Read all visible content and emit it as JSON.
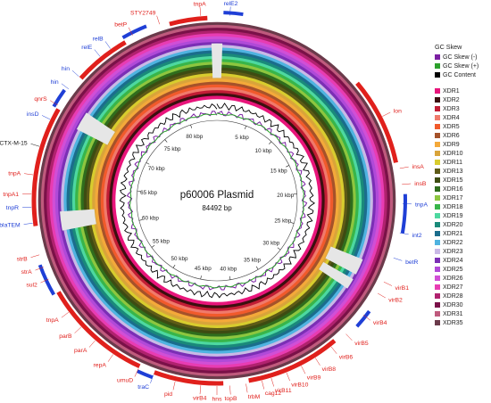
{
  "title": "p60006 Plasmid",
  "length_label": "84492 bp",
  "ticks": [
    "5 kbp",
    "10 kbp",
    "15 kbp",
    "20 kbp",
    "25 kbp",
    "30 kbp",
    "35 kbp",
    "40 kbp",
    "45 kbp",
    "50 kbp",
    "55 kbp",
    "60 kbp",
    "65 kbp",
    "70 kbp",
    "75 kbp",
    "80 kbp"
  ],
  "legend": {
    "gc_title": "GC Skew",
    "gc_items": [
      {
        "label": "GC Skew (-)",
        "color": "#7b1fa2"
      },
      {
        "label": "GC Skew (+)",
        "color": "#2ca02c"
      },
      {
        "label": "GC Content",
        "color": "#000000"
      }
    ],
    "rings": [
      {
        "label": "XDR1",
        "color": "#e8157b"
      },
      {
        "label": "XDR2",
        "color": "#3b0f0f"
      },
      {
        "label": "XDR3",
        "color": "#c21d35"
      },
      {
        "label": "XDR4",
        "color": "#f07a6b"
      },
      {
        "label": "XDR5",
        "color": "#f15a2b"
      },
      {
        "label": "XDR6",
        "color": "#a5522a"
      },
      {
        "label": "XDR9",
        "color": "#f4a93a"
      },
      {
        "label": "XDR10",
        "color": "#d9a43a"
      },
      {
        "label": "XDR11",
        "color": "#d8cc2e"
      },
      {
        "label": "XDR13",
        "color": "#5e5a17"
      },
      {
        "label": "XDR15",
        "color": "#3d4c12"
      },
      {
        "label": "XDR16",
        "color": "#2f6d1d"
      },
      {
        "label": "XDR17",
        "color": "#8dc63f"
      },
      {
        "label": "XDR18",
        "color": "#38b54a"
      },
      {
        "label": "XDR19",
        "color": "#4dd8a0"
      },
      {
        "label": "XDR20",
        "color": "#1a8a7a"
      },
      {
        "label": "XDR21",
        "color": "#1b6d8c"
      },
      {
        "label": "XDR22",
        "color": "#4fb3e0"
      },
      {
        "label": "XDR23",
        "color": "#c9b9e6"
      },
      {
        "label": "XDR24",
        "color": "#7b2fb5"
      },
      {
        "label": "XDR25",
        "color": "#b04ad8"
      },
      {
        "label": "XDR26",
        "color": "#d14fd6"
      },
      {
        "label": "XDR27",
        "color": "#e83cb2"
      },
      {
        "label": "XDR28",
        "color": "#b0226e"
      },
      {
        "label": "XDR30",
        "color": "#7a1148"
      },
      {
        "label": "XDR31",
        "color": "#bf5a7d"
      },
      {
        "label": "XDR35",
        "color": "#6a3a4a"
      }
    ]
  },
  "genes": [
    {
      "label": "relE2",
      "color": "#1f3fd6"
    },
    {
      "label": "tnpA",
      "color": "#e0201c"
    },
    {
      "label": "STY2749",
      "color": "#e0201c"
    },
    {
      "label": "betP",
      "color": "#e0201c"
    },
    {
      "label": "relB",
      "color": "#1f3fd6"
    },
    {
      "label": "relE",
      "color": "#1f3fd6"
    },
    {
      "label": "hin",
      "color": "#1f3fd6"
    },
    {
      "label": "hin",
      "color": "#1f3fd6"
    },
    {
      "label": "qnrS",
      "color": "#e0201c"
    },
    {
      "label": "insD",
      "color": "#1f3fd6"
    },
    {
      "label": "blaCTX-M-15",
      "color": "#111111"
    },
    {
      "label": "tnpA",
      "color": "#e0201c"
    },
    {
      "label": "tnpA1",
      "color": "#e0201c"
    },
    {
      "label": "tnpR",
      "color": "#1f3fd6"
    },
    {
      "label": "blaTEM",
      "color": "#1f3fd6"
    },
    {
      "label": "strB",
      "color": "#e0201c"
    },
    {
      "label": "strA",
      "color": "#e0201c"
    },
    {
      "label": "sul2",
      "color": "#e0201c"
    },
    {
      "label": "tnpA",
      "color": "#e0201c"
    },
    {
      "label": "parB",
      "color": "#e0201c"
    },
    {
      "label": "parA",
      "color": "#e0201c"
    },
    {
      "label": "repA",
      "color": "#e0201c"
    },
    {
      "label": "umuD",
      "color": "#e0201c"
    },
    {
      "label": "traC",
      "color": "#1f3fd6"
    },
    {
      "label": "pid",
      "color": "#e0201c"
    },
    {
      "label": "virB4",
      "color": "#e0201c"
    },
    {
      "label": "hns",
      "color": "#e0201c"
    },
    {
      "label": "topB",
      "color": "#e0201c"
    },
    {
      "label": "trbM",
      "color": "#e0201c"
    },
    {
      "label": "cag12",
      "color": "#e0201c"
    },
    {
      "label": "virB11",
      "color": "#e0201c"
    },
    {
      "label": "virB10",
      "color": "#e0201c"
    },
    {
      "label": "virB9",
      "color": "#e0201c"
    },
    {
      "label": "virB8",
      "color": "#e0201c"
    },
    {
      "label": "virB6",
      "color": "#e0201c"
    },
    {
      "label": "virB5",
      "color": "#e0201c"
    },
    {
      "label": "virB4",
      "color": "#e0201c"
    },
    {
      "label": "virB2",
      "color": "#e0201c"
    },
    {
      "label": "virB1",
      "color": "#e0201c"
    },
    {
      "label": "betR",
      "color": "#1f3fd6"
    },
    {
      "label": "int2",
      "color": "#1f3fd6"
    },
    {
      "label": "tnpA",
      "color": "#1f3fd6"
    },
    {
      "label": "insB",
      "color": "#e0201c"
    },
    {
      "label": "insA",
      "color": "#e0201c"
    },
    {
      "label": "lon",
      "color": "#e0201c"
    }
  ]
}
